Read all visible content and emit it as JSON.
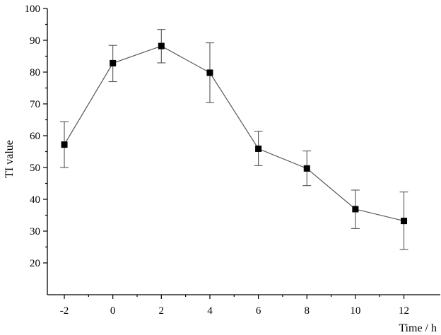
{
  "chart_data": {
    "type": "line",
    "title": "",
    "xlabel": "Time / h",
    "ylabel": "TI value",
    "xlim": [
      -2.7,
      13.5
    ],
    "ylim": [
      10,
      100
    ],
    "xticks": [
      -2,
      0,
      2,
      4,
      6,
      8,
      10,
      12
    ],
    "yticks": [
      20,
      30,
      40,
      50,
      60,
      70,
      80,
      90,
      100
    ],
    "grid": false,
    "legend": "none",
    "series": [
      {
        "x": [
          -2,
          0,
          2,
          4,
          6,
          8,
          10,
          12
        ],
        "y": [
          57.2,
          82.8,
          88.2,
          79.8,
          55.9,
          49.7,
          36.9,
          33.2
        ],
        "error_upper": [
          64.4,
          88.4,
          93.4,
          89.2,
          61.4,
          55.2,
          42.9,
          42.3
        ],
        "error_lower": [
          50.0,
          77.0,
          82.9,
          70.4,
          50.6,
          44.3,
          30.8,
          24.2
        ],
        "marker": "square",
        "color": "#000000",
        "line_color": "#555555"
      }
    ]
  }
}
